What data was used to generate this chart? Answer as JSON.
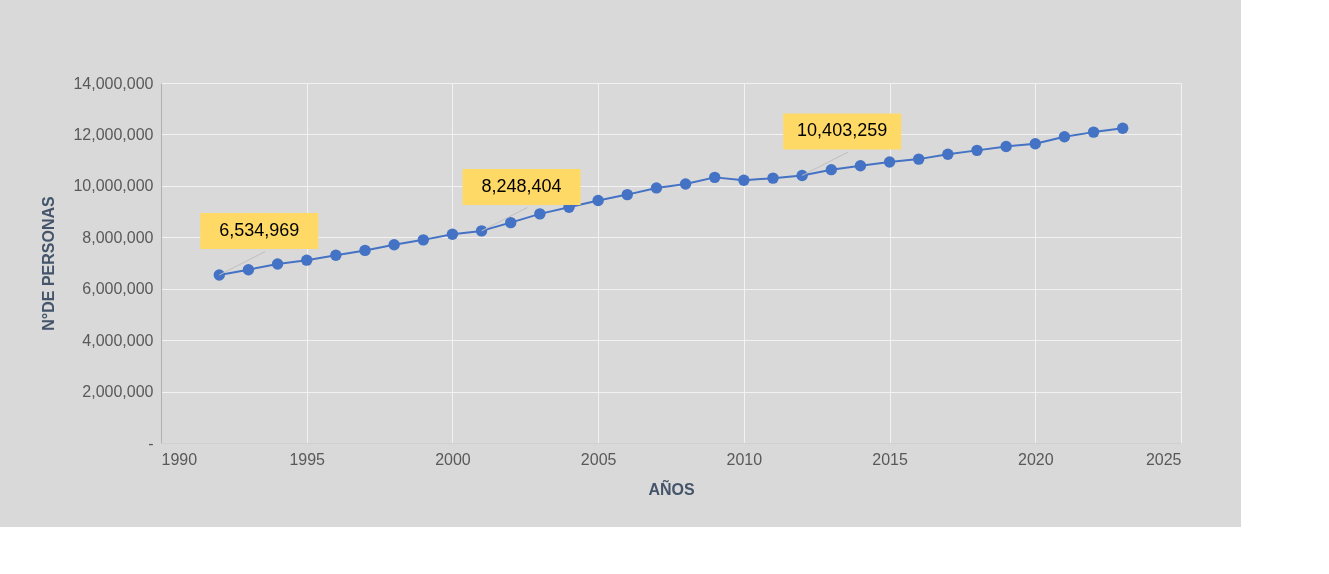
{
  "chart_data": {
    "type": "line",
    "xlabel": "AÑOS",
    "ylabel": "N°DE PERSONAS",
    "x": [
      1992,
      1993,
      1994,
      1995,
      1996,
      1997,
      1998,
      1999,
      2000,
      2001,
      2002,
      2003,
      2004,
      2005,
      2006,
      2007,
      2008,
      2009,
      2010,
      2011,
      2012,
      2013,
      2014,
      2015,
      2016,
      2017,
      2018,
      2019,
      2020,
      2021,
      2022,
      2023
    ],
    "series": [
      {
        "color": "#4472c4",
        "values": [
          6534969,
          6740000,
          6960000,
          7110000,
          7300000,
          7490000,
          7710000,
          7900000,
          8120000,
          8248404,
          8570000,
          8910000,
          9170000,
          9430000,
          9660000,
          9920000,
          10070000,
          10330000,
          10220000,
          10300000,
          10403259,
          10630000,
          10780000,
          10930000,
          11040000,
          11230000,
          11380000,
          11530000,
          11640000,
          11910000,
          12090000,
          12240000
        ],
        "value_labels": [
          "6,534,969",
          null,
          null,
          null,
          null,
          null,
          null,
          null,
          null,
          "8,248,404",
          null,
          null,
          null,
          null,
          null,
          null,
          null,
          null,
          null,
          null,
          "10,403,259",
          null,
          null,
          null,
          null,
          null,
          null,
          null,
          null,
          null,
          null,
          null
        ]
      }
    ],
    "xlim": [
      1990,
      2025
    ],
    "xticks": [
      1990,
      1995,
      2000,
      2005,
      2010,
      2015,
      2020,
      2025
    ],
    "ylim": [
      0,
      14000000
    ],
    "yticks": [
      {
        "value": 0,
        "label": "-"
      },
      {
        "value": 2000000,
        "label": "2,000,000"
      },
      {
        "value": 4000000,
        "label": "4,000,000"
      },
      {
        "value": 6000000,
        "label": "6,000,000"
      },
      {
        "value": 8000000,
        "label": "8,000,000"
      },
      {
        "value": 10000000,
        "label": "10,000,000"
      },
      {
        "value": 12000000,
        "label": "12,000,000"
      },
      {
        "value": 14000000,
        "label": "14,000,000"
      }
    ],
    "grid": true,
    "marker": "circle",
    "line_style": "solid"
  }
}
